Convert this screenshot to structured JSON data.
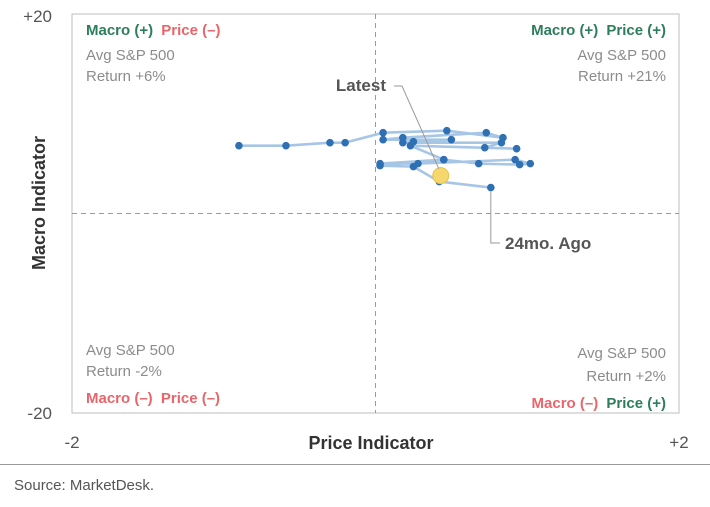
{
  "chart_data": {
    "type": "scatter",
    "title": "",
    "xlabel": "Price Indicator",
    "ylabel": "Macro Indicator",
    "xlim": [
      -2,
      2
    ],
    "ylim": [
      -20,
      20
    ],
    "x_tick_labels": {
      "min": "-2",
      "max": "+2"
    },
    "y_tick_labels": {
      "min": "-20",
      "max": "+20"
    },
    "grid": false,
    "quadrant_dividers": "dashed lines at x = 0 and y = 0",
    "series": [
      {
        "style": "connected points (path from 24 months ago to latest)",
        "points": [
          {
            "x": 0.76,
            "y": 2.6
          },
          {
            "x": 0.42,
            "y": 3.2
          },
          {
            "x": 0.25,
            "y": 4.7
          },
          {
            "x": 0.03,
            "y": 4.8
          },
          {
            "x": 0.45,
            "y": 5.4
          },
          {
            "x": 0.68,
            "y": 5.0
          },
          {
            "x": 0.95,
            "y": 4.9
          },
          {
            "x": 1.02,
            "y": 5.0
          },
          {
            "x": 0.92,
            "y": 5.4
          },
          {
            "x": 0.28,
            "y": 5.0
          },
          {
            "x": 0.03,
            "y": 5.0
          },
          {
            "x": 0.45,
            "y": 5.4
          },
          {
            "x": 0.23,
            "y": 6.8
          },
          {
            "x": 0.93,
            "y": 6.5
          },
          {
            "x": 0.72,
            "y": 6.6
          },
          {
            "x": 0.83,
            "y": 7.1
          },
          {
            "x": 0.18,
            "y": 7.1
          },
          {
            "x": 0.25,
            "y": 7.2
          },
          {
            "x": 0.5,
            "y": 7.4
          },
          {
            "x": 0.05,
            "y": 7.4
          },
          {
            "x": 0.18,
            "y": 7.6
          },
          {
            "x": 0.73,
            "y": 8.1
          },
          {
            "x": 0.84,
            "y": 7.6
          },
          {
            "x": 0.47,
            "y": 8.3
          },
          {
            "x": 0.05,
            "y": 8.1
          },
          {
            "x": -0.2,
            "y": 7.1
          },
          {
            "x": -0.3,
            "y": 7.1
          },
          {
            "x": -0.59,
            "y": 6.8
          },
          {
            "x": -0.9,
            "y": 6.8
          }
        ]
      }
    ],
    "highlight_point": {
      "x": 0.43,
      "y": 3.8,
      "color": "#f5d76e"
    },
    "annotations": {
      "latest": "Latest",
      "start": "24mo. Ago"
    },
    "quadrants": {
      "top_left": {
        "macro": "Macro (+)",
        "price": "Price (–)",
        "note_line1": "Avg S&P 500",
        "note_line2": "Return +6%"
      },
      "top_right": {
        "macro": "Macro (+)",
        "price": "Price (+)",
        "note_line1": "Avg S&P 500",
        "note_line2": "Return +21%"
      },
      "bottom_left": {
        "macro": "Macro (–)",
        "price": "Price (–)",
        "note_line1": "Avg S&P 500",
        "note_line2": "Return -2%"
      },
      "bottom_right": {
        "macro": "Macro (–)",
        "price": "Price (+)",
        "note_line1": "Avg S&P 500",
        "note_line2": "Return +2%"
      }
    },
    "colors": {
      "positive": "#2e7d5b",
      "negative": "#e8666b",
      "line": "#a7c6e6",
      "point": "#2f6fb3",
      "latest": "#f5d76e"
    }
  },
  "source": "Source: MarketDesk."
}
